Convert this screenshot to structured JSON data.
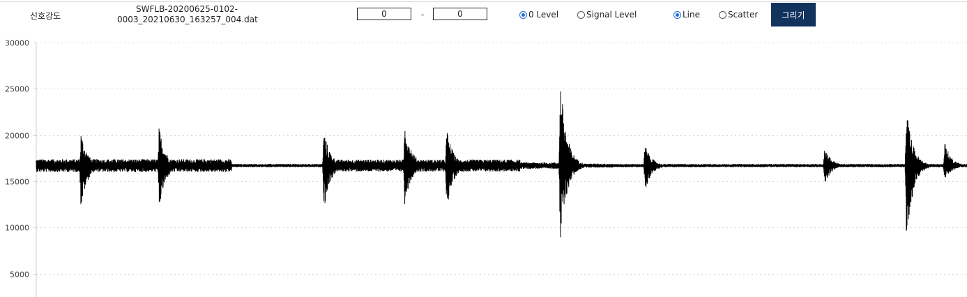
{
  "toolbar": {
    "title_label": "신호강도",
    "filename_line1": "SWFLB-20200625-0102-",
    "filename_line2": "0003_20210630_163257_004.dat",
    "range_from": "0",
    "range_separator": "-",
    "range_to": "0",
    "level_options": [
      {
        "label": "0 Level",
        "checked": true
      },
      {
        "label": "Signal Level",
        "checked": false
      }
    ],
    "style_options": [
      {
        "label": "Line",
        "checked": true
      },
      {
        "label": "Scatter",
        "checked": false
      }
    ],
    "draw_button": "그리기",
    "accent_color": "#12335e",
    "radio_color": "#1f6fd6"
  },
  "chart_data": {
    "type": "line",
    "title": "",
    "xlabel": "",
    "ylabel": "",
    "ylim": [
      2500,
      30000
    ],
    "yticks": [
      30000,
      25000,
      20000,
      15000,
      10000,
      5000
    ],
    "grid": "horizontal dotted",
    "series_color": "#000000",
    "baseline": 16700,
    "baseline_noise": 250,
    "x_domain": [
      0,
      1000
    ],
    "segments": [
      {
        "start": 0,
        "end": 210,
        "amp": 700
      },
      {
        "start": 210,
        "end": 310,
        "amp": 180
      },
      {
        "start": 310,
        "end": 520,
        "amp": 650
      },
      {
        "start": 520,
        "end": 570,
        "amp": 350
      },
      {
        "start": 570,
        "end": 620,
        "amp": 220
      },
      {
        "start": 620,
        "end": 1000,
        "amp": 180
      }
    ],
    "bursts": [
      {
        "center": 48,
        "peak_high": 20400,
        "peak_low": 11900
      },
      {
        "center": 132,
        "peak_high": 21000,
        "peak_low": 11800
      },
      {
        "center": 309,
        "peak_high": 20600,
        "peak_low": 11800
      },
      {
        "center": 396,
        "peak_high": 21700,
        "peak_low": 12400
      },
      {
        "center": 441,
        "peak_high": 20800,
        "peak_low": 11800
      },
      {
        "center": 563,
        "peak_high": 26200,
        "peak_low": 8000
      },
      {
        "center": 654,
        "peak_high": 19100,
        "peak_low": 13900
      },
      {
        "center": 847,
        "peak_high": 18800,
        "peak_low": 14600
      },
      {
        "center": 935,
        "peak_high": 22900,
        "peak_low": 8300
      },
      {
        "center": 976,
        "peak_high": 19300,
        "peak_low": 14800
      }
    ]
  }
}
